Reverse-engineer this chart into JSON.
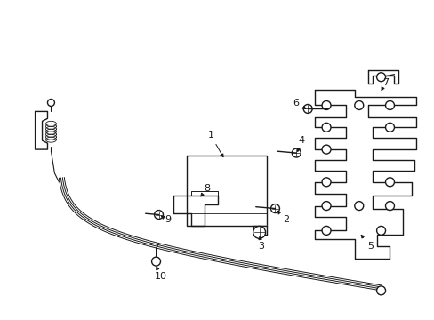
{
  "background_color": "#ffffff",
  "line_color": "#1a1a1a",
  "line_width": 1.0,
  "callout_fontsize": 8,
  "callouts": [
    [
      "1",
      237,
      152,
      253,
      180
    ],
    [
      "2",
      322,
      248,
      312,
      237
    ],
    [
      "3",
      294,
      278,
      292,
      263
    ],
    [
      "4",
      340,
      158,
      334,
      174
    ],
    [
      "5",
      418,
      278,
      405,
      262
    ],
    [
      "6",
      333,
      115,
      348,
      124
    ],
    [
      "7",
      435,
      92,
      430,
      102
    ],
    [
      "8",
      233,
      212,
      225,
      222
    ],
    [
      "9",
      188,
      248,
      180,
      243
    ],
    [
      "10",
      180,
      312,
      175,
      300
    ]
  ]
}
